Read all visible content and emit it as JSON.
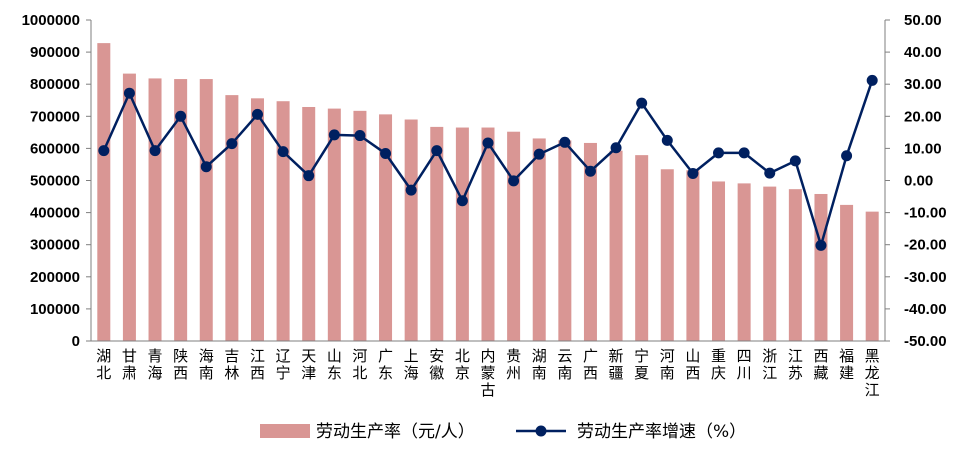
{
  "chart_data": {
    "type": "bar",
    "categories": [
      "湖北",
      "甘肃",
      "青海",
      "陕西",
      "海南",
      "吉林",
      "江西",
      "辽宁",
      "天津",
      "山东",
      "河北",
      "广东",
      "上海",
      "安徽",
      "北京",
      "内蒙古",
      "贵州",
      "湖南",
      "云南",
      "广西",
      "新疆",
      "宁夏",
      "河南",
      "山西",
      "重庆",
      "四川",
      "浙江",
      "江苏",
      "西藏",
      "福建",
      "黑龙江"
    ],
    "series": [
      {
        "name": "劳动生产率（元/人）",
        "type": "bar",
        "axis": "left",
        "color": "#d99694",
        "values": [
          928000,
          833000,
          818000,
          816000,
          816000,
          766000,
          756000,
          747000,
          729000,
          724000,
          717000,
          706000,
          690000,
          667000,
          665000,
          665000,
          652000,
          631000,
          625000,
          617000,
          593000,
          579000,
          535000,
          532000,
          497000,
          491000,
          481000,
          473000,
          458000,
          424000,
          403000
        ]
      },
      {
        "name": "劳动生产率增速（%）",
        "type": "line",
        "axis": "right",
        "color": "#002060",
        "values": [
          9.3,
          27.2,
          9.3,
          20.0,
          4.3,
          11.5,
          20.6,
          9.0,
          1.5,
          14.2,
          14.0,
          8.4,
          -3.0,
          9.3,
          -6.3,
          11.7,
          -0.1,
          8.2,
          11.9,
          2.9,
          10.2,
          24.1,
          12.5,
          2.2,
          8.6,
          8.6,
          2.3,
          6.1,
          -20.2,
          7.7,
          31.2
        ]
      }
    ],
    "y_left": {
      "range": [
        0,
        1000000
      ],
      "ticks": [
        "0",
        "100000",
        "200000",
        "300000",
        "400000",
        "500000",
        "600000",
        "700000",
        "800000",
        "900000",
        "1000000"
      ]
    },
    "y_right": {
      "range": [
        -50,
        50
      ],
      "ticks": [
        "-50.00",
        "-40.00",
        "-30.00",
        "-20.00",
        "-10.00",
        "0.00",
        "10.00",
        "20.00",
        "30.00",
        "40.00",
        "50.00"
      ]
    },
    "grid": false,
    "legend_position": "bottom"
  }
}
